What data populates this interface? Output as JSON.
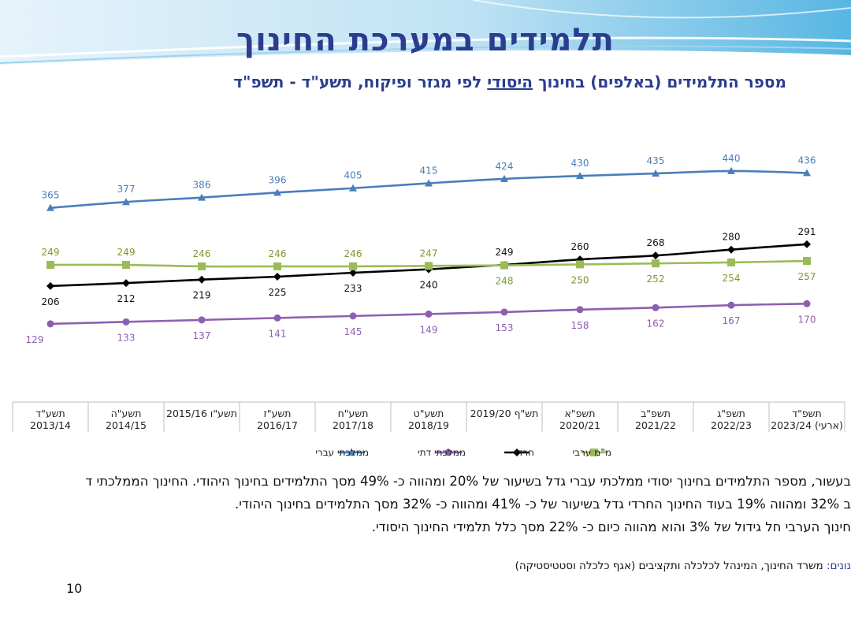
{
  "title": "תלמידים במערכת החינוך",
  "subtitle": {
    "before": "מספר התלמידים (באלפים) בחינוך ",
    "underlined": "היסודי",
    "after": " לפי מגזר ופיקוח, תשע\"ד - תשפ\"ד"
  },
  "chart_data": {
    "type": "line",
    "categories": [
      [
        "תשע\"ד",
        "2013/14"
      ],
      [
        "תשע\"ה",
        "2014/15"
      ],
      [
        "תשע\"ו 2015/16"
      ],
      [
        "תשע\"ז",
        "2016/17"
      ],
      [
        "תשע\"ח",
        "2017/18"
      ],
      [
        "תשע\"ט",
        "2018/19"
      ],
      [
        "תש\"ף 2019/20"
      ],
      [
        "תשפ\"א",
        "2020/21"
      ],
      [
        "תשפ\"ב",
        "2021/22"
      ],
      [
        "תשפ\"ג",
        "2022/23"
      ],
      [
        "תשפ\"ד",
        "2023/24 (ארעי)"
      ]
    ],
    "series": [
      {
        "name": "ממלכתי עברי",
        "color": "#4a7ebb",
        "marker": "triangle",
        "values": [
          365,
          377,
          386,
          396,
          405,
          415,
          424,
          430,
          435,
          440,
          436
        ],
        "label_position": "above"
      },
      {
        "name": "ממלכתי דתי",
        "color": "#8e5fb0",
        "marker": "circle",
        "values": [
          129,
          133,
          137,
          141,
          145,
          149,
          153,
          158,
          162,
          167,
          170
        ],
        "label_position": "below"
      },
      {
        "name": "חרדי",
        "color": "#000000",
        "marker": "diamond",
        "values": [
          206,
          212,
          219,
          225,
          233,
          240,
          249,
          260,
          268,
          280,
          291
        ],
        "label_position": [
          "below",
          "below",
          "below",
          "below",
          "below",
          "below",
          "above",
          "above",
          "above",
          "above",
          "above"
        ]
      },
      {
        "name": "מ\"מ ערבי",
        "color": "#9bbb59",
        "marker": "square",
        "values": [
          249,
          249,
          246,
          246,
          246,
          247,
          248,
          250,
          252,
          254,
          257
        ],
        "label_position": [
          "above",
          "above",
          "above",
          "above",
          "above",
          "above",
          "below",
          "below",
          "below",
          "below",
          "below"
        ]
      }
    ],
    "legend_position": "bottom",
    "grid": false,
    "label_color": "#7a9a2a"
  },
  "notes": [
    "בעשור, מספר התלמידים בחינוך יסודי ממלכתי עברי גדל בשיעור של 20% ומהווה כ- 49% מסך התלמידים בחינוך היהודי. החינוך הממלכתי ד",
    "ב 32% ומהווה 19% בעוד החינוך החרדי גדל בשיעור של כ- 41% ומהווה כ- 32% מסך התלמידים בחינוך היהודי.",
    "חינוך הערבי חל גידול של 3% והוא מהווה כיום כ- 22% מסך כלל תלמידי החינוך היסודי."
  ],
  "source": {
    "label": "נונים:",
    "text": " משרד החינוך, המינהל לכלכלה ותקציבים (אגף כלכלה  וסטטיסטיקה)"
  },
  "page_number": "10"
}
